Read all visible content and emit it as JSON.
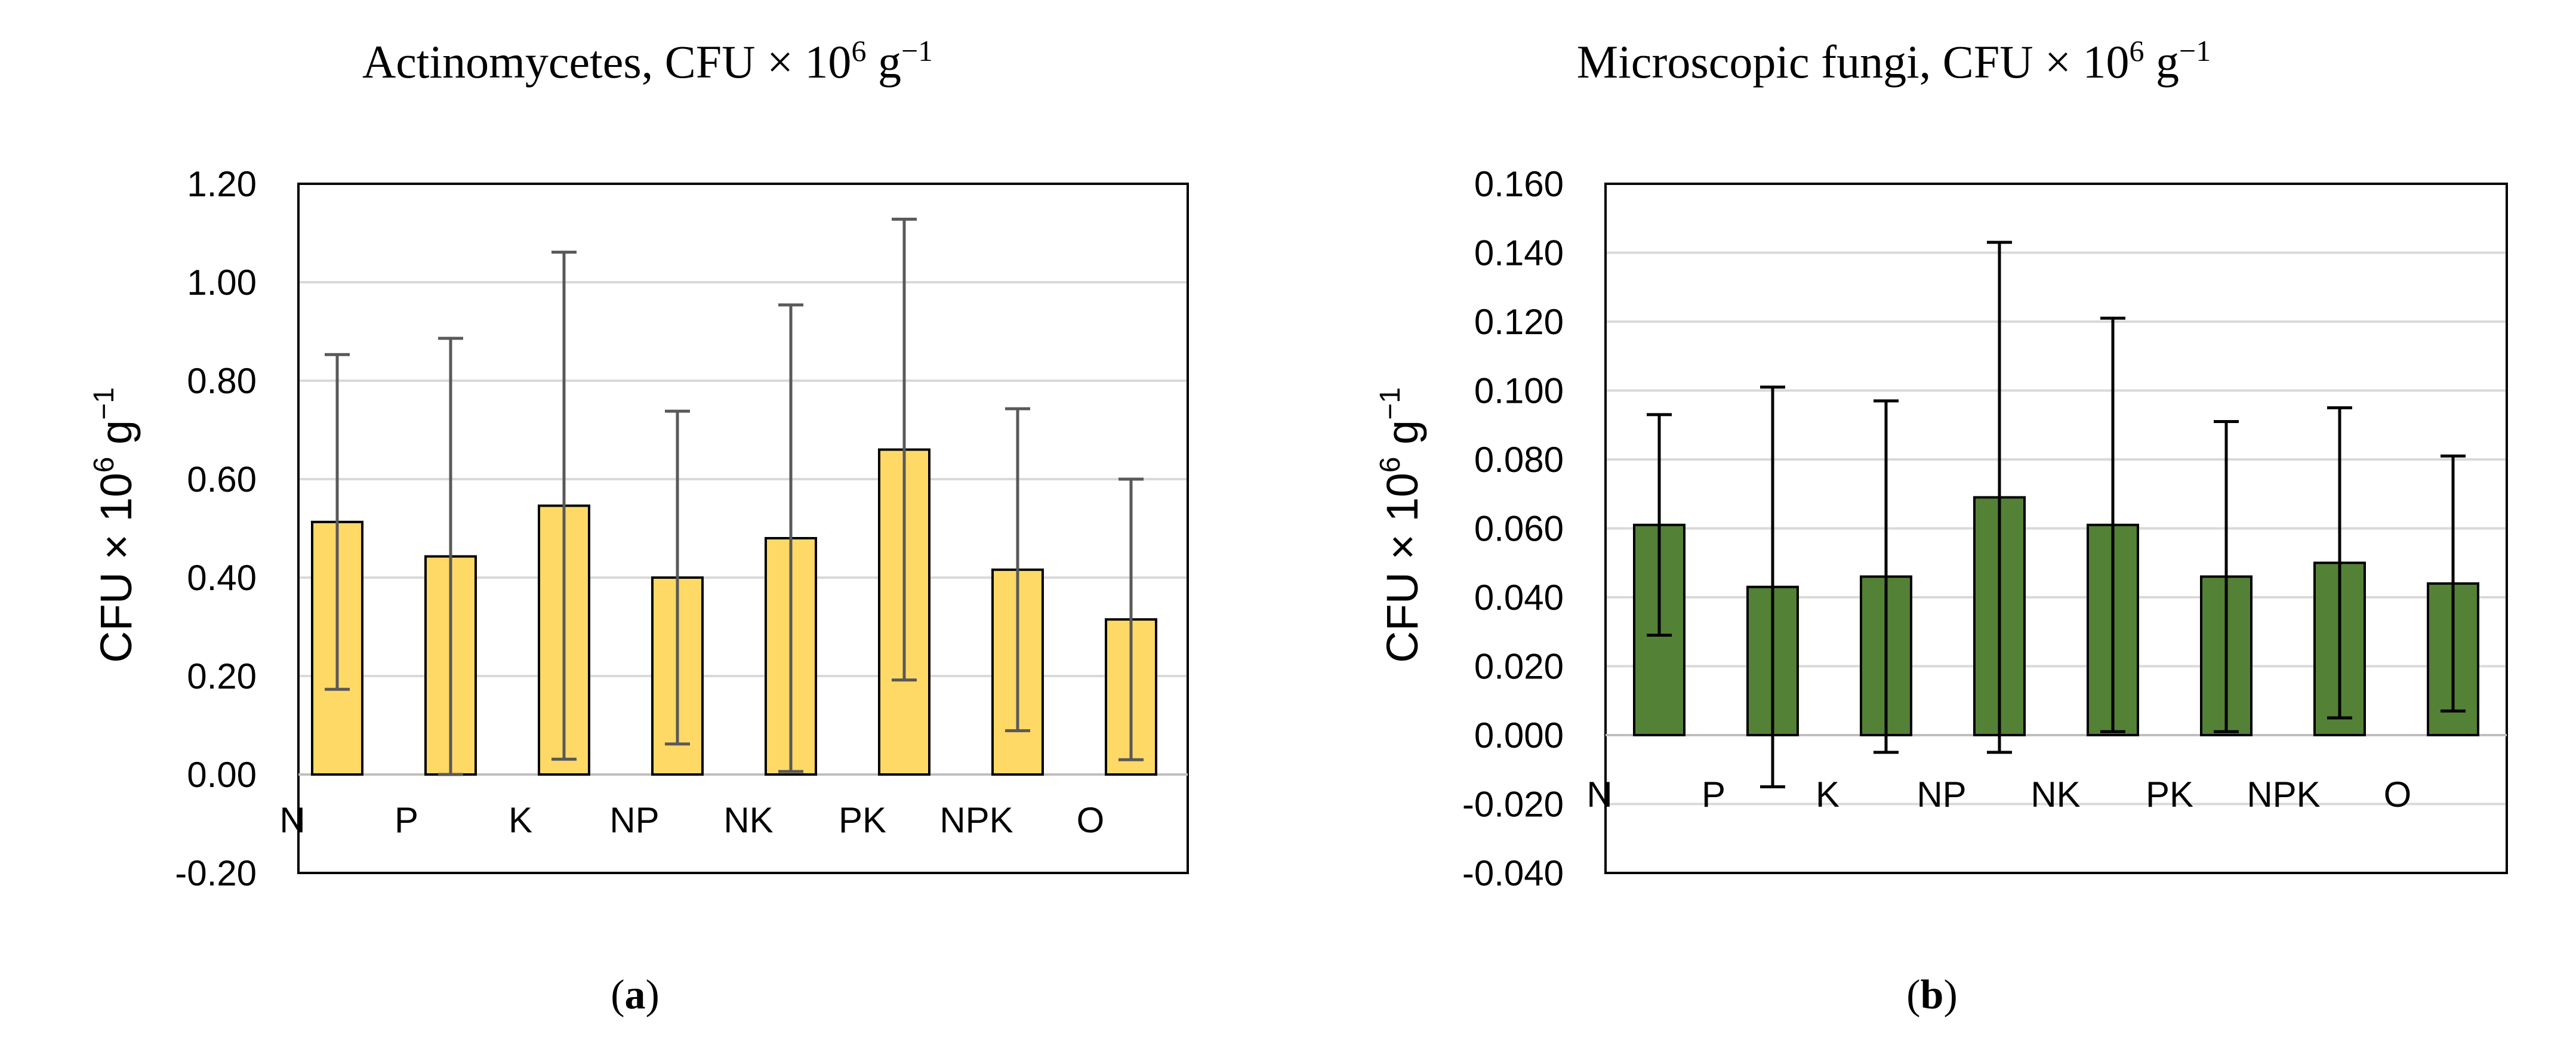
{
  "chart_data": [
    {
      "type": "bar",
      "title": "Actinomycetes, CFU × 10",
      "title_sup": "6",
      "title_unit": " g",
      "title_unit_sup": "−1",
      "ylabel": "CFU × 10",
      "ylabel_sup": "6",
      "ylabel_unit": " g",
      "ylabel_unit_sup": "−1",
      "caption_open": "(",
      "caption_letter": "a",
      "caption_close": ")",
      "ylim": [
        -0.2,
        1.2
      ],
      "yticks": [
        -0.2,
        0.0,
        0.2,
        0.4,
        0.6,
        0.8,
        1.0,
        1.2
      ],
      "yticks_labels": [
        "-0.20",
        "0.00",
        "0.20",
        "0.40",
        "0.60",
        "0.80",
        "1.00",
        "1.20"
      ],
      "categories": [
        "N",
        "P",
        "K",
        "NP",
        "NK",
        "PK",
        "NPK",
        "O"
      ],
      "values": [
        0.513,
        0.443,
        0.546,
        0.4,
        0.48,
        0.66,
        0.416,
        0.315
      ],
      "error": [
        0.34,
        0.443,
        0.515,
        0.338,
        0.474,
        0.468,
        0.327,
        0.285
      ],
      "bar_color": "#FFD966",
      "error_color": "#595959",
      "grid": true
    },
    {
      "type": "bar",
      "title": "Microscopic fungi, CFU × 10",
      "title_sup": "6",
      "title_unit": " g",
      "title_unit_sup": "−1",
      "ylabel": "CFU × 10",
      "ylabel_sup": "6",
      "ylabel_unit": " g",
      "ylabel_unit_sup": "−1",
      "caption_open": "(",
      "caption_letter": "b",
      "caption_close": ")",
      "ylim": [
        -0.04,
        0.16
      ],
      "yticks": [
        -0.04,
        -0.02,
        0.0,
        0.02,
        0.04,
        0.06,
        0.08,
        0.1,
        0.12,
        0.14,
        0.16
      ],
      "yticks_labels": [
        "-0.040",
        "-0.020",
        "0.000",
        "0.020",
        "0.040",
        "0.060",
        "0.080",
        "0.100",
        "0.120",
        "0.140",
        "0.160"
      ],
      "categories": [
        "N",
        "P",
        "K",
        "NP",
        "NK",
        "PK",
        "NPK",
        "O"
      ],
      "values": [
        0.061,
        0.043,
        0.046,
        0.069,
        0.061,
        0.046,
        0.05,
        0.044
      ],
      "error": [
        0.032,
        0.058,
        0.051,
        0.074,
        0.06,
        0.045,
        0.045,
        0.037
      ],
      "bar_color": "#538135",
      "error_color": "#000000",
      "grid": true
    }
  ]
}
